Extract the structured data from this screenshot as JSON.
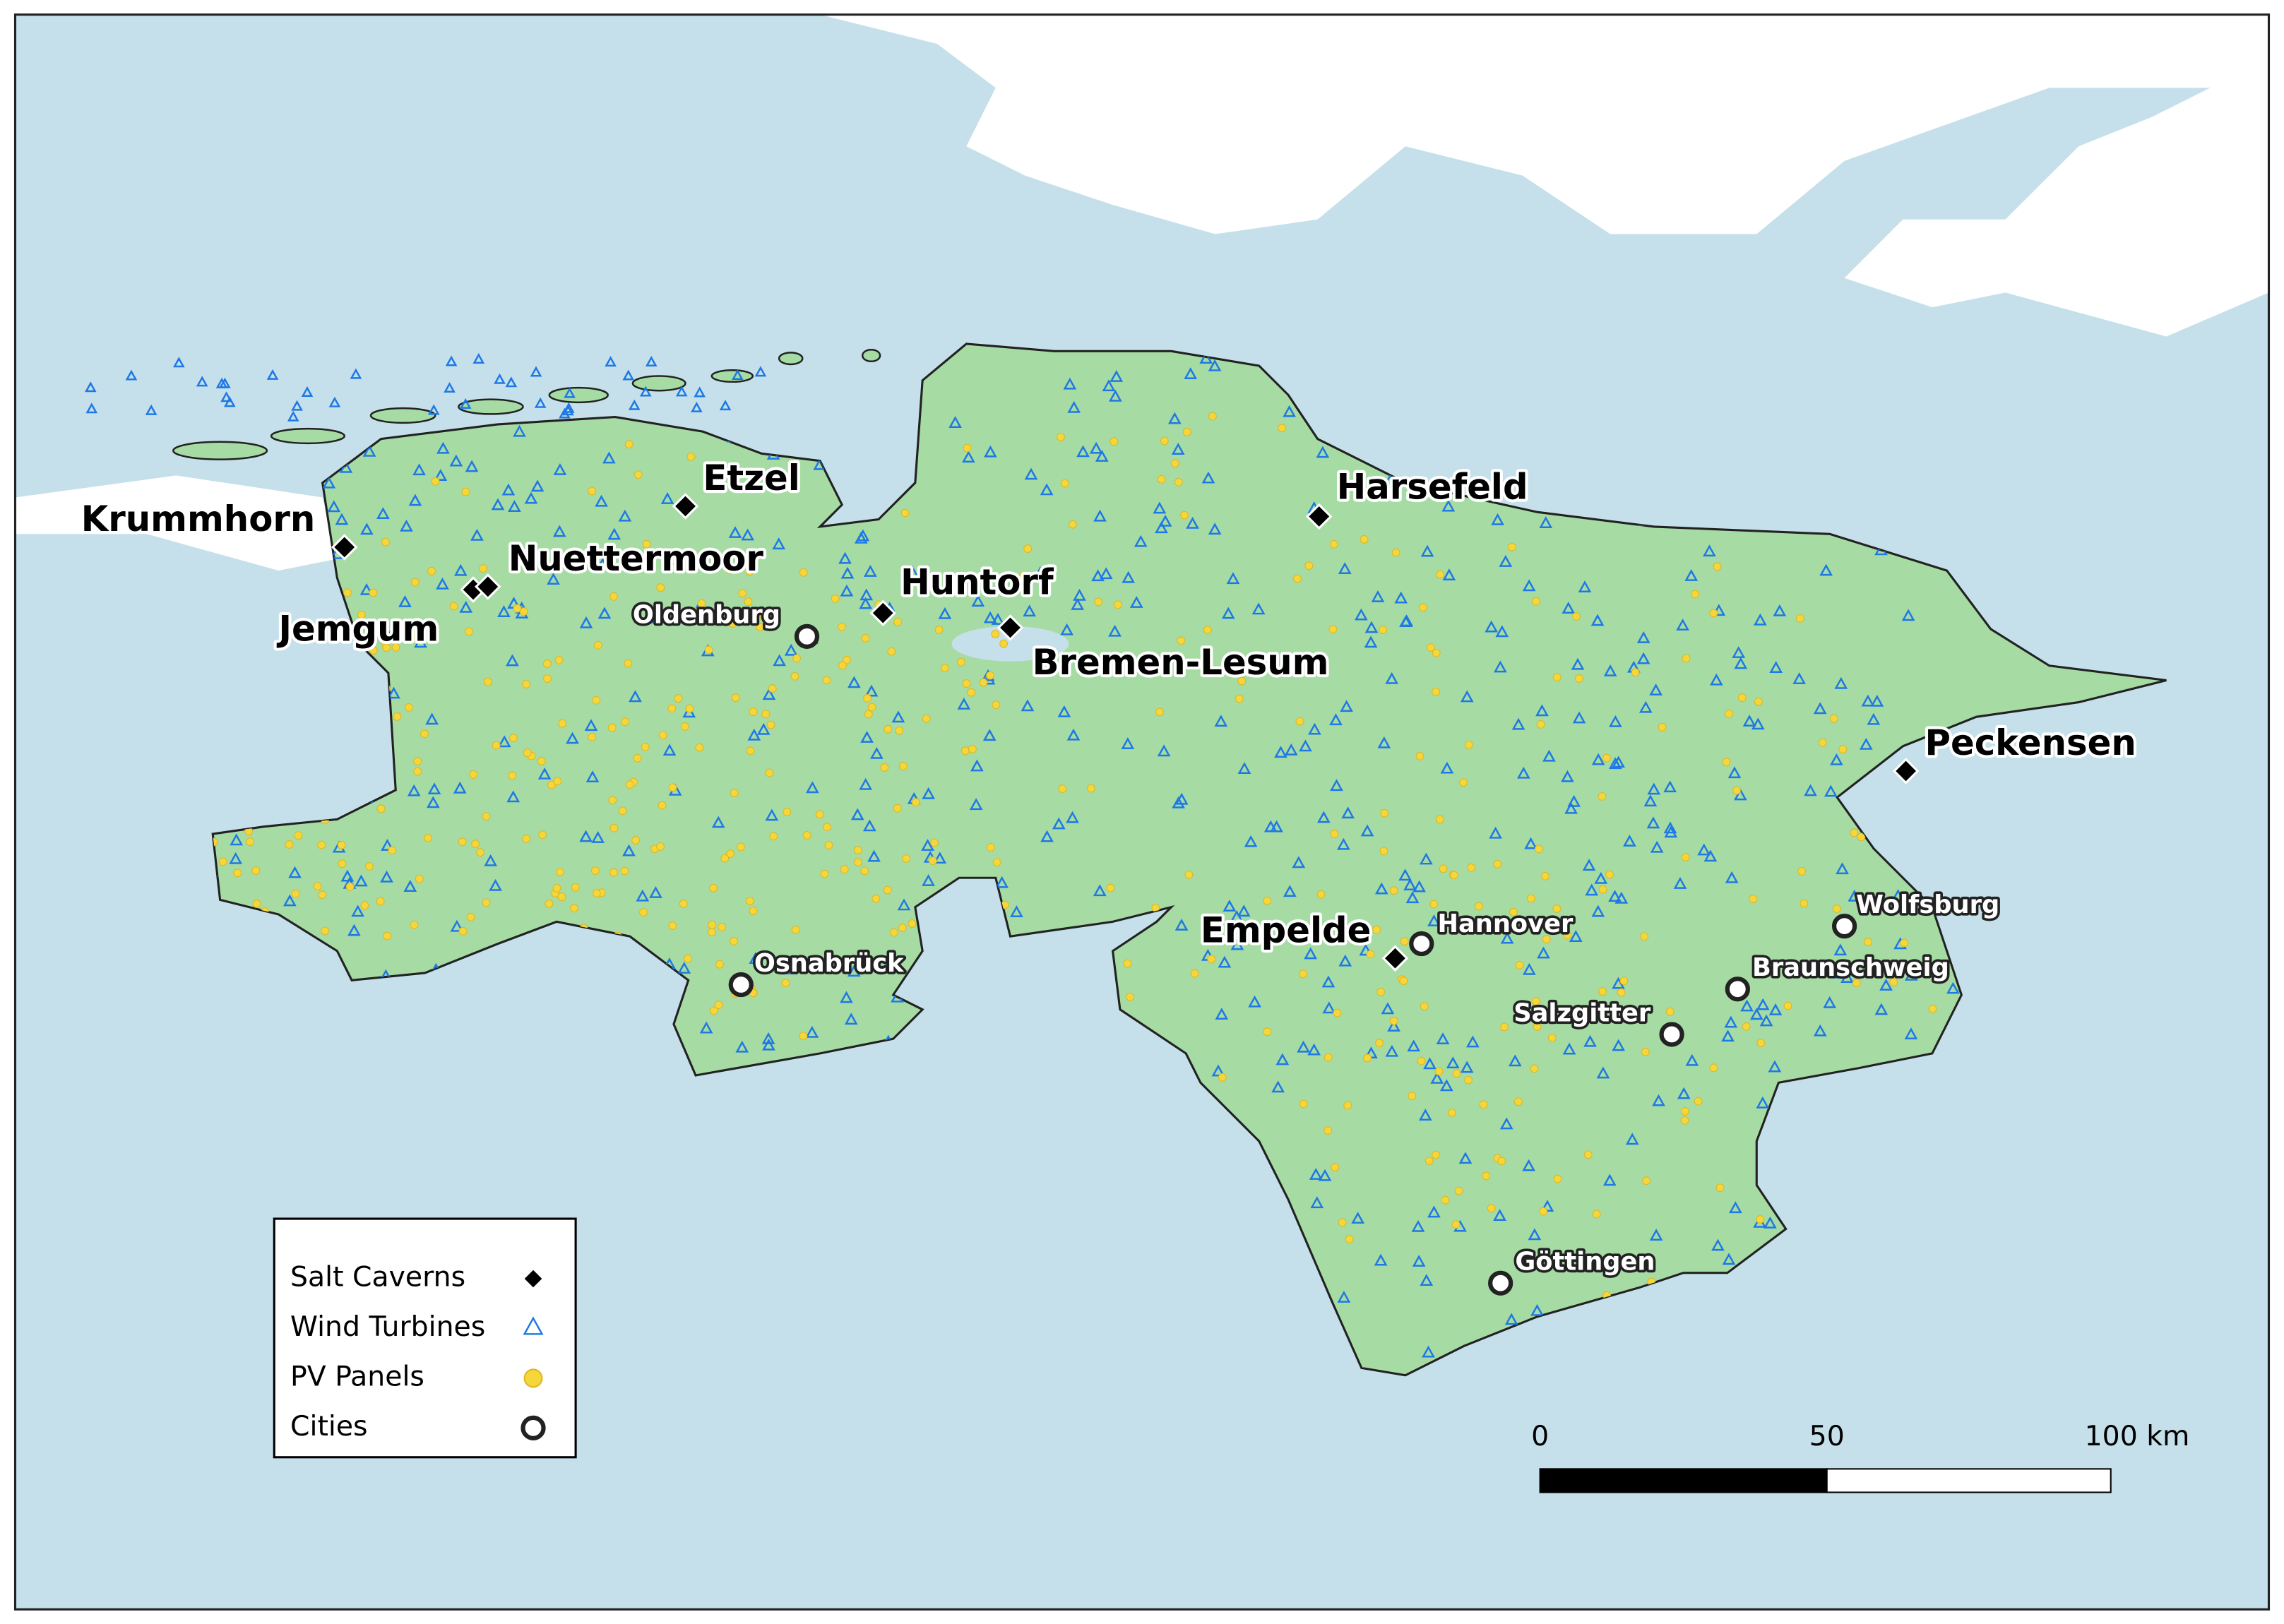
{
  "salt_caverns": [
    "Krummhorn",
    "Jemgum",
    "Nuettermoor",
    "Etzel",
    "Huntorf",
    "Bremen-Lesum",
    "Harsefeld",
    "Peckensen",
    "Empelde"
  ],
  "cities": [
    "Oldenburg",
    "Osnabrück",
    "Hannover",
    "Wolfsburg",
    "Braunschweig",
    "Salzgitter",
    "Göttingen"
  ],
  "legend": {
    "items": [
      "Salt Caverns",
      "Wind Turbines",
      "PV Panels",
      "Cities"
    ]
  },
  "scale_bar": {
    "labels": [
      "0",
      "50",
      "100 km"
    ]
  }
}
